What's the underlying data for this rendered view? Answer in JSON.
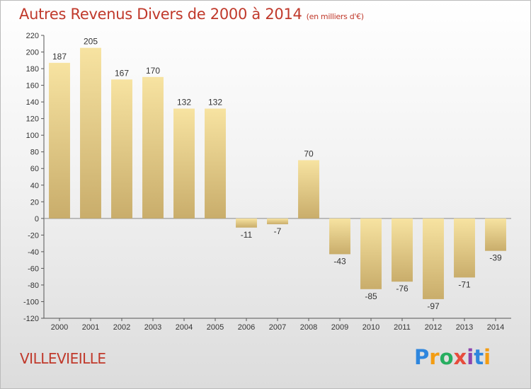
{
  "title": "Autres Revenus Divers de 2000 à 2014",
  "subtitle": "(en milliers d'€)",
  "town": "VILLEVIEILLE",
  "brand": {
    "letters": [
      "P",
      "r",
      "o",
      "x",
      "i",
      "t",
      "i"
    ],
    "colors": [
      "#2e86de",
      "#f39c12",
      "#27ae60",
      "#e74c3c",
      "#8e44ad",
      "#2e86de",
      "#f39c12"
    ]
  },
  "colors": {
    "title": "#c0392b",
    "bar_light": "#f7e3a1",
    "bar_dark": "#c9ad6b"
  },
  "chart_data": {
    "type": "bar",
    "categories": [
      "2000",
      "2001",
      "2002",
      "2003",
      "2004",
      "2005",
      "2006",
      "2007",
      "2008",
      "2009",
      "2010",
      "2011",
      "2012",
      "2013",
      "2014"
    ],
    "values": [
      187,
      205,
      167,
      170,
      132,
      132,
      -11,
      -7,
      70,
      -43,
      -85,
      -76,
      -97,
      -71,
      -39
    ],
    "ylim": [
      -120,
      220
    ],
    "yticks": [
      -120,
      -100,
      -80,
      -60,
      -40,
      -20,
      0,
      20,
      40,
      60,
      80,
      100,
      120,
      140,
      160,
      180,
      200,
      220
    ],
    "grid": false
  }
}
